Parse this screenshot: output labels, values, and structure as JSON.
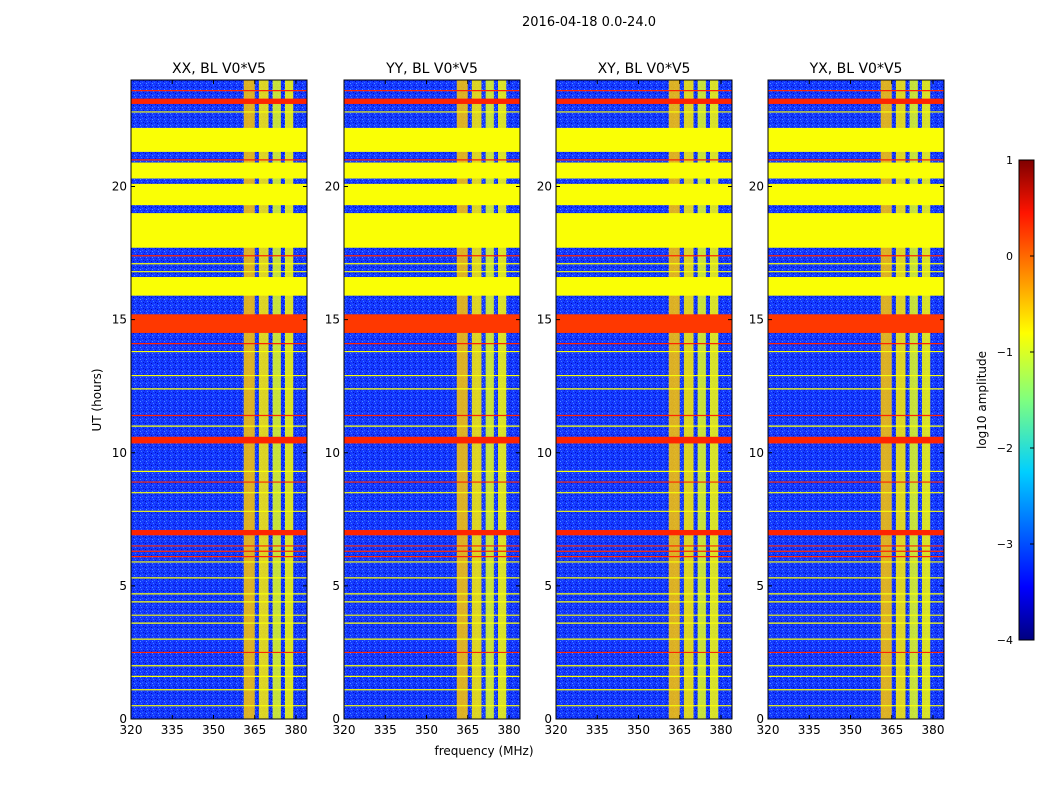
{
  "chart_data": {
    "type": "heatmap",
    "suptitle": "2016-04-18 0.0-24.0",
    "xlabel": "frequency (MHz)",
    "ylabel": "UT (hours)",
    "xlim": [
      320,
      384
    ],
    "ylim": [
      0,
      24
    ],
    "x_ticks": [
      "320",
      "335",
      "350",
      "365",
      "380"
    ],
    "x_tick_values": [
      320,
      335,
      350,
      365,
      380
    ],
    "y_ticks": [
      "0",
      "5",
      "10",
      "15",
      "20"
    ],
    "y_tick_values": [
      0,
      5,
      10,
      15,
      20
    ],
    "colorbar": {
      "label": "log10 amplitude",
      "range": [
        -4,
        1
      ],
      "ticks": [
        "−4",
        "−3",
        "−2",
        "−1",
        "0",
        "1"
      ],
      "tick_values": [
        -4,
        -3,
        -2,
        -1,
        0,
        1
      ],
      "colormap": "jet"
    },
    "panels": [
      {
        "title": "XX, BL V0*V5",
        "background_level": -3.2,
        "rfi_band_mhz": [
          361,
          379
        ]
      },
      {
        "title": "YY, BL V0*V5",
        "background_level": -3.2,
        "rfi_band_mhz": [
          361,
          378
        ]
      },
      {
        "title": "XY, BL V0*V5",
        "background_level": -3.3,
        "rfi_band_mhz": [
          361,
          378
        ]
      },
      {
        "title": "YX, BL V0*V5",
        "background_level": -3.3,
        "rfi_band_mhz": [
          361,
          378
        ]
      }
    ],
    "flagged_time_ranges_hours": [
      {
        "range": [
          17.7,
          19.0
        ],
        "level": -0.9
      },
      {
        "range": [
          19.3,
          20.1
        ],
        "level": -0.9
      },
      {
        "range": [
          20.3,
          20.9
        ],
        "level": -0.9
      },
      {
        "range": [
          21.3,
          22.2
        ],
        "level": -0.9
      },
      {
        "range": [
          15.9,
          16.6
        ],
        "level": -0.9
      },
      {
        "range": [
          14.5,
          15.2
        ],
        "level": 0.1
      },
      {
        "range": [
          10.35,
          10.6
        ],
        "level": 0.2
      },
      {
        "range": [
          6.9,
          7.1
        ],
        "level": 0.2
      },
      {
        "range": [
          23.1,
          23.3
        ],
        "level": 0.2
      }
    ],
    "horizontal_lines_hours": [
      {
        "t": 23.6,
        "level": 0.2
      },
      {
        "t": 22.8,
        "level": -0.9
      },
      {
        "t": 21.0,
        "level": 0.2
      },
      {
        "t": 17.4,
        "level": 0.2
      },
      {
        "t": 17.1,
        "level": -0.9
      },
      {
        "t": 16.8,
        "level": -0.9
      },
      {
        "t": 14.1,
        "level": 0.2
      },
      {
        "t": 13.8,
        "level": -0.9
      },
      {
        "t": 12.9,
        "level": -0.9
      },
      {
        "t": 12.4,
        "level": -0.9
      },
      {
        "t": 11.4,
        "level": 0.2
      },
      {
        "t": 11.0,
        "level": -0.9
      },
      {
        "t": 9.3,
        "level": -0.9
      },
      {
        "t": 8.9,
        "level": 0.2
      },
      {
        "t": 8.5,
        "level": -0.9
      },
      {
        "t": 7.8,
        "level": -0.9
      },
      {
        "t": 6.5,
        "level": 0.2
      },
      {
        "t": 6.3,
        "level": 0.2
      },
      {
        "t": 6.1,
        "level": 0.2
      },
      {
        "t": 5.9,
        "level": -0.9
      },
      {
        "t": 5.3,
        "level": -0.9
      },
      {
        "t": 4.7,
        "level": -0.9
      },
      {
        "t": 4.4,
        "level": -0.9
      },
      {
        "t": 3.9,
        "level": -0.9
      },
      {
        "t": 3.6,
        "level": -0.9
      },
      {
        "t": 3.0,
        "level": -0.9
      },
      {
        "t": 2.5,
        "level": 0.2
      },
      {
        "t": 2.0,
        "level": -0.9
      },
      {
        "t": 1.6,
        "level": -0.9
      },
      {
        "t": 1.1,
        "level": -0.9
      },
      {
        "t": 0.5,
        "level": -0.9
      }
    ],
    "rfi_channel_strips_mhz": [
      {
        "range": [
          361,
          365
        ],
        "level": -0.6
      },
      {
        "range": [
          366.5,
          370
        ],
        "level": -0.8
      },
      {
        "range": [
          371.5,
          374.5
        ],
        "level": -1.0
      },
      {
        "range": [
          376,
          379
        ],
        "level": -0.9
      }
    ]
  }
}
